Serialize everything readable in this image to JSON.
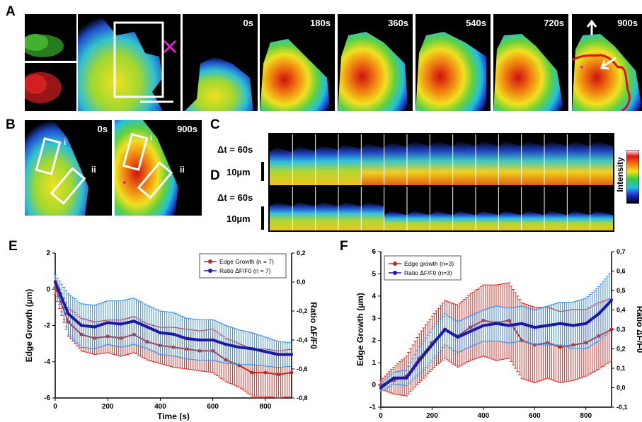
{
  "figure": {
    "panel_letters": [
      "A",
      "B",
      "C",
      "D",
      "E",
      "F"
    ],
    "panel_a": {
      "time_labels": [
        "0s",
        "180s",
        "360s",
        "540s",
        "720s",
        "900s"
      ]
    },
    "panel_b": {
      "time_labels": [
        "0s",
        "900s"
      ],
      "roi_labels": [
        "i",
        "ii"
      ]
    },
    "panel_c": {
      "dt_label": "Δt = 60s",
      "scale_label": "10µm",
      "frame_count": 15
    },
    "panel_d": {
      "dt_label": "Δt = 60s",
      "scale_label": "10µm",
      "frame_count": 15
    },
    "intensity_label": "Intensity",
    "colors": {
      "edge_growth": "#c0281e",
      "ratio": "#1a1aa8",
      "ratio_err": "#3d8fe8",
      "edge_err": "#e0302a",
      "roi_box": "#ffffff",
      "cross_marker": "#e020d0",
      "contour": "#e01010"
    }
  },
  "chart_data": [
    {
      "type": "line",
      "panel": "E",
      "xlabel": "Time (s)",
      "ylabel": "Edge Growth (µm)",
      "y2label": "Ratio ΔF/F0",
      "xlim": [
        0,
        900
      ],
      "ylim": [
        -6,
        2
      ],
      "y2lim": [
        -0.8,
        0.2
      ],
      "xticks": [
        "0",
        "200",
        "400",
        "600",
        "800"
      ],
      "yticks": [
        "-6",
        "-4",
        "-2",
        "0",
        "2"
      ],
      "y2ticks": [
        "-0,8",
        "-0,6",
        "-0,4",
        "-0,2",
        "0,0",
        "0,2"
      ],
      "legend_position": "top-right",
      "series": [
        {
          "name": "Edge Growth (n = 7)",
          "axis": "left",
          "x": [
            0,
            50,
            100,
            150,
            200,
            250,
            300,
            350,
            400,
            450,
            500,
            550,
            600,
            650,
            700,
            750,
            800,
            850,
            900
          ],
          "values": [
            0.1,
            -1.8,
            -2.5,
            -2.7,
            -2.6,
            -2.7,
            -2.5,
            -2.9,
            -3.1,
            -3.2,
            -3.3,
            -3.4,
            -3.4,
            -3.9,
            -4.2,
            -4.6,
            -4.6,
            -4.7,
            -4.6
          ],
          "err": [
            0.4,
            0.8,
            0.9,
            0.9,
            0.9,
            1.0,
            1.0,
            1.0,
            1.0,
            1.1,
            1.1,
            1.1,
            1.2,
            1.2,
            1.2,
            1.3,
            1.3,
            1.3,
            1.3
          ]
        },
        {
          "name": "Ratio ΔF/F0 (n = 7)",
          "axis": "right",
          "x": [
            0,
            50,
            100,
            150,
            200,
            250,
            300,
            350,
            400,
            450,
            500,
            550,
            600,
            650,
            700,
            750,
            800,
            850,
            900
          ],
          "values": [
            0.0,
            -0.22,
            -0.3,
            -0.31,
            -0.28,
            -0.29,
            -0.27,
            -0.31,
            -0.35,
            -0.36,
            -0.39,
            -0.4,
            -0.4,
            -0.43,
            -0.45,
            -0.46,
            -0.48,
            -0.5,
            -0.5
          ],
          "err": [
            0.05,
            0.14,
            0.15,
            0.15,
            0.15,
            0.16,
            0.16,
            0.15,
            0.15,
            0.15,
            0.14,
            0.14,
            0.14,
            0.13,
            0.12,
            0.11,
            0.1,
            0.09,
            0.08
          ]
        }
      ]
    },
    {
      "type": "line",
      "panel": "F",
      "xlabel": "Time (s)",
      "ylabel": "Edge Growth (µm)",
      "y2label": "Ratio ΔF/F0",
      "xlim": [
        0,
        900
      ],
      "ylim": [
        -1,
        6
      ],
      "y2lim": [
        -0.1,
        0.7
      ],
      "xticks": [
        "0",
        "200",
        "400",
        "600",
        "800"
      ],
      "yticks": [
        "-1",
        "0",
        "1",
        "2",
        "3",
        "4",
        "5",
        "6"
      ],
      "y2ticks": [
        "-0,1",
        "0,0",
        "0,1",
        "0,2",
        "0,3",
        "0,4",
        "0,5",
        "0,6",
        "0,7"
      ],
      "legend_position": "top-left",
      "series": [
        {
          "name": "Edge growth (n=3)",
          "axis": "left",
          "x": [
            0,
            50,
            100,
            150,
            200,
            250,
            300,
            350,
            400,
            450,
            500,
            550,
            600,
            650,
            700,
            750,
            800,
            850,
            900
          ],
          "values": [
            0.0,
            0.2,
            0.4,
            1.2,
            1.9,
            2.5,
            2.2,
            2.6,
            2.9,
            2.8,
            2.9,
            2.0,
            1.8,
            1.9,
            1.7,
            1.8,
            1.9,
            2.2,
            2.5
          ],
          "err": [
            0.2,
            0.6,
            0.9,
            1.1,
            1.2,
            1.3,
            1.4,
            1.5,
            1.6,
            1.7,
            1.7,
            1.7,
            1.7,
            1.6,
            1.6,
            1.6,
            1.5,
            1.5,
            1.4
          ]
        },
        {
          "name": "Ratio ΔF/F0 (n=3)",
          "axis": "right",
          "x": [
            0,
            50,
            100,
            150,
            200,
            250,
            300,
            350,
            400,
            450,
            500,
            550,
            600,
            650,
            700,
            750,
            800,
            850,
            900
          ],
          "values": [
            0.0,
            0.05,
            0.05,
            0.14,
            0.22,
            0.3,
            0.26,
            0.29,
            0.32,
            0.33,
            0.32,
            0.33,
            0.31,
            0.32,
            0.33,
            0.32,
            0.33,
            0.38,
            0.45
          ],
          "err": [
            0.02,
            0.03,
            0.04,
            0.07,
            0.08,
            0.08,
            0.08,
            0.08,
            0.08,
            0.09,
            0.09,
            0.09,
            0.09,
            0.1,
            0.11,
            0.12,
            0.13,
            0.14,
            0.15
          ]
        }
      ]
    }
  ]
}
